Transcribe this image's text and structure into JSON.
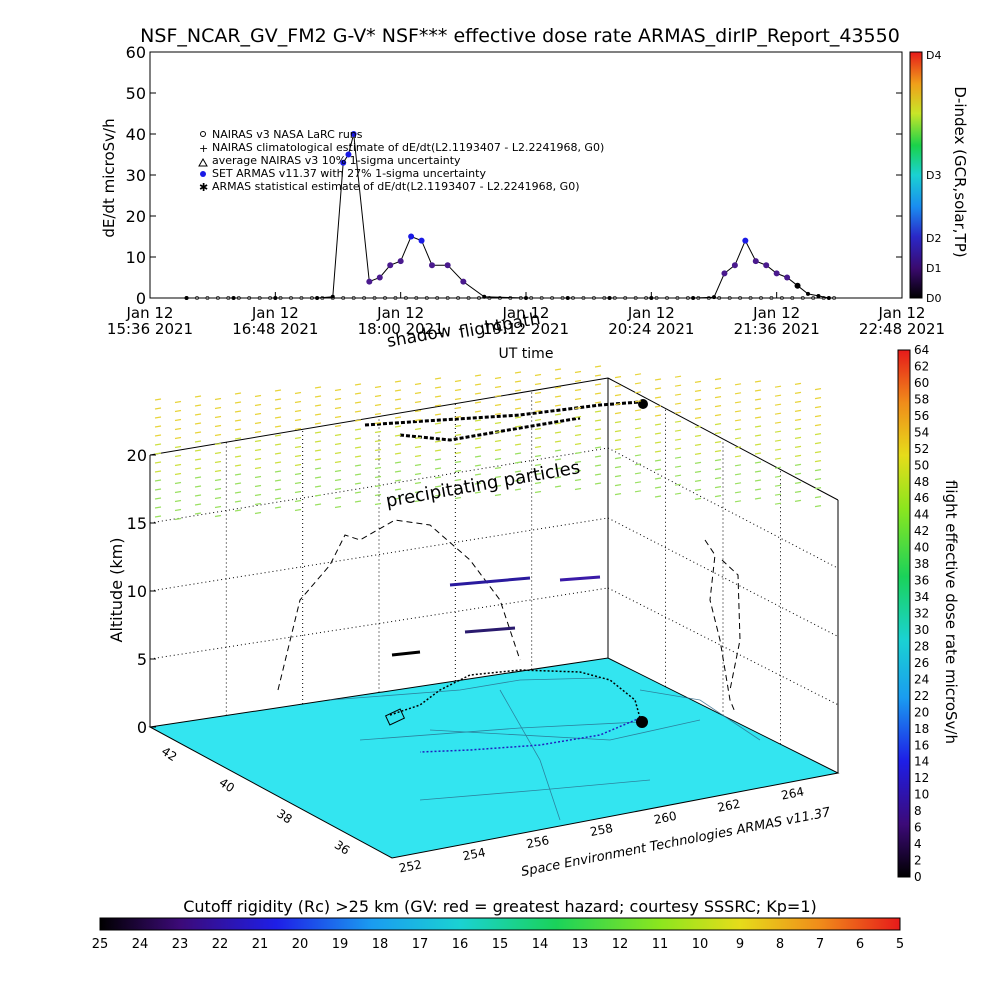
{
  "chart_data": [
    {
      "type": "line",
      "title": "NSF_NCAR_GV_FM2 G-V* NSF*** effective dose rate ARMAS_dirIP_Report_43550",
      "xlabel": "UT time",
      "ylabel": "dE/dt microSv/h",
      "ylim": [
        0,
        60
      ],
      "yticks": [
        "0",
        "10",
        "20",
        "30",
        "40",
        "50",
        "60"
      ],
      "xticks": [
        {
          "date": "Jan 12",
          "time": "15:36 2021"
        },
        {
          "date": "Jan 12",
          "time": "16:48 2021"
        },
        {
          "date": "Jan 12",
          "time": "18:00 2021"
        },
        {
          "date": "Jan 12",
          "time": "19:12 2021"
        },
        {
          "date": "Jan 12",
          "time": "20:24 2021"
        },
        {
          "date": "Jan 12",
          "time": "21:36 2021"
        },
        {
          "date": "Jan 12",
          "time": "22:48 2021"
        }
      ],
      "legend_position": "top-left",
      "legend": [
        "NAIRAS v3 NASA LaRC runs",
        "NAIRAS climatological estimate of dE/dt(L2.1193407 - L2.2241968, G0)",
        "average NAIRAS v3 10% 1-sigma uncertainty",
        "SET ARMAS v11.37 with 27% 1-sigma uncertainty",
        "ARMAS statistical estimate of dE/dt(L2.1193407 - L2.2241968, G0)"
      ],
      "series": [
        {
          "values_x_hours": [
            15.95,
            16.4,
            16.8,
            17.2,
            17.35,
            17.45,
            17.5,
            17.55,
            17.7,
            17.8,
            17.9,
            18.0,
            18.1,
            18.2,
            18.3,
            18.45,
            18.6,
            18.8,
            19.2,
            19.6,
            20.0,
            20.4,
            20.8,
            21.0,
            21.1,
            21.2,
            21.3,
            21.4,
            21.5,
            21.6,
            21.7,
            21.8,
            21.9,
            22.0,
            22.1
          ],
          "values_y": [
            0,
            0,
            0,
            0,
            0.3,
            33,
            35,
            40,
            4,
            5,
            8,
            9,
            15,
            14,
            8,
            8,
            4,
            0.3,
            0,
            0,
            0,
            0,
            0,
            0.2,
            6,
            8,
            14,
            9,
            8,
            6,
            5,
            3,
            1,
            0.5,
            0
          ]
        }
      ],
      "d_index_colorbar": {
        "label": "D-index (GCR,solar,TP)",
        "ticks": [
          "D0",
          "D1",
          "D2",
          "D3",
          "D4"
        ]
      }
    },
    {
      "type": "scatter",
      "subtitle": "Space Environment Technologies ARMAS v11.37",
      "zlabel": "Altitude (km)",
      "zticks": [
        "0",
        "5",
        "10",
        "15",
        "20"
      ],
      "lat_ticks": [
        "42",
        "40",
        "38",
        "36"
      ],
      "lon_ticks": [
        "252",
        "254",
        "256",
        "258",
        "260",
        "262",
        "264"
      ],
      "annotations": [
        "shadow",
        "flightpath",
        "precipitating particles"
      ],
      "dose_colorbar": {
        "label": "flight effective dose rate microSv/h",
        "ticks": [
          "0",
          "2",
          "4",
          "6",
          "8",
          "10",
          "12",
          "14",
          "16",
          "18",
          "20",
          "22",
          "24",
          "26",
          "28",
          "30",
          "32",
          "34",
          "36",
          "38",
          "40",
          "42",
          "44",
          "46",
          "48",
          "50",
          "52",
          "54",
          "56",
          "58",
          "60",
          "62",
          "64"
        ]
      },
      "cutoff_colorbar": {
        "title": "Cutoff rigidity (Rc) >25 km (GV: red = greatest hazard; courtesy SSSRC; Kp=1)",
        "ticks": [
          "25",
          "24",
          "23",
          "22",
          "21",
          "20",
          "19",
          "18",
          "17",
          "16",
          "15",
          "14",
          "13",
          "12",
          "11",
          "10",
          "9",
          "8",
          "7",
          "6",
          "5"
        ]
      }
    }
  ],
  "colors": {
    "ground": "#33e5f0",
    "precip_high": "#e8d43a",
    "precip_low": "#9ae060",
    "accent_blue": "#1a1ae6"
  }
}
